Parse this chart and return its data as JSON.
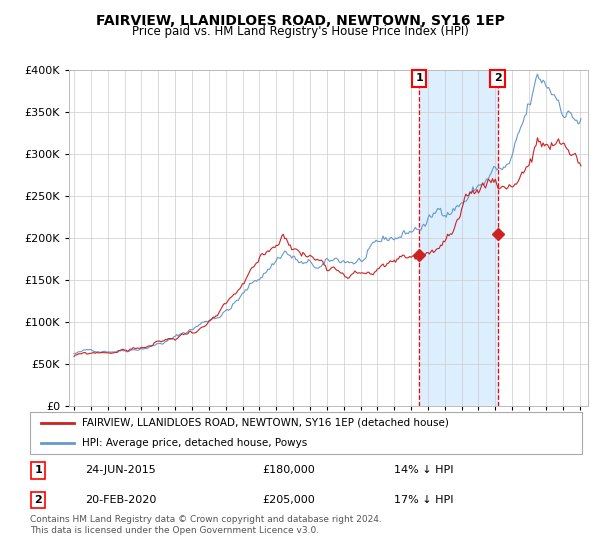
{
  "title": "FAIRVIEW, LLANIDLOES ROAD, NEWTOWN, SY16 1EP",
  "subtitle": "Price paid vs. HM Land Registry's House Price Index (HPI)",
  "legend_line1": "FAIRVIEW, LLANIDLOES ROAD, NEWTOWN, SY16 1EP (detached house)",
  "legend_line2": "HPI: Average price, detached house, Powys",
  "annotation1_label": "1",
  "annotation1_date": "24-JUN-2015",
  "annotation1_price": "£180,000",
  "annotation1_hpi": "14% ↓ HPI",
  "annotation1_year": 2015.48,
  "annotation1_value": 180000,
  "annotation2_label": "2",
  "annotation2_date": "20-FEB-2020",
  "annotation2_price": "£205,000",
  "annotation2_hpi": "17% ↓ HPI",
  "annotation2_year": 2020.13,
  "annotation2_value": 205000,
  "footer": "Contains HM Land Registry data © Crown copyright and database right 2024.\nThis data is licensed under the Open Government Licence v3.0.",
  "ylim": [
    0,
    400000
  ],
  "yticks": [
    0,
    50000,
    100000,
    150000,
    200000,
    250000,
    300000,
    350000,
    400000
  ],
  "background_color": "#ffffff",
  "plot_bg_color": "#ffffff",
  "grid_color": "#cccccc",
  "highlight_color": "#ddeeff",
  "red_line_color": "#cc2222",
  "blue_line_color": "#6699cc"
}
